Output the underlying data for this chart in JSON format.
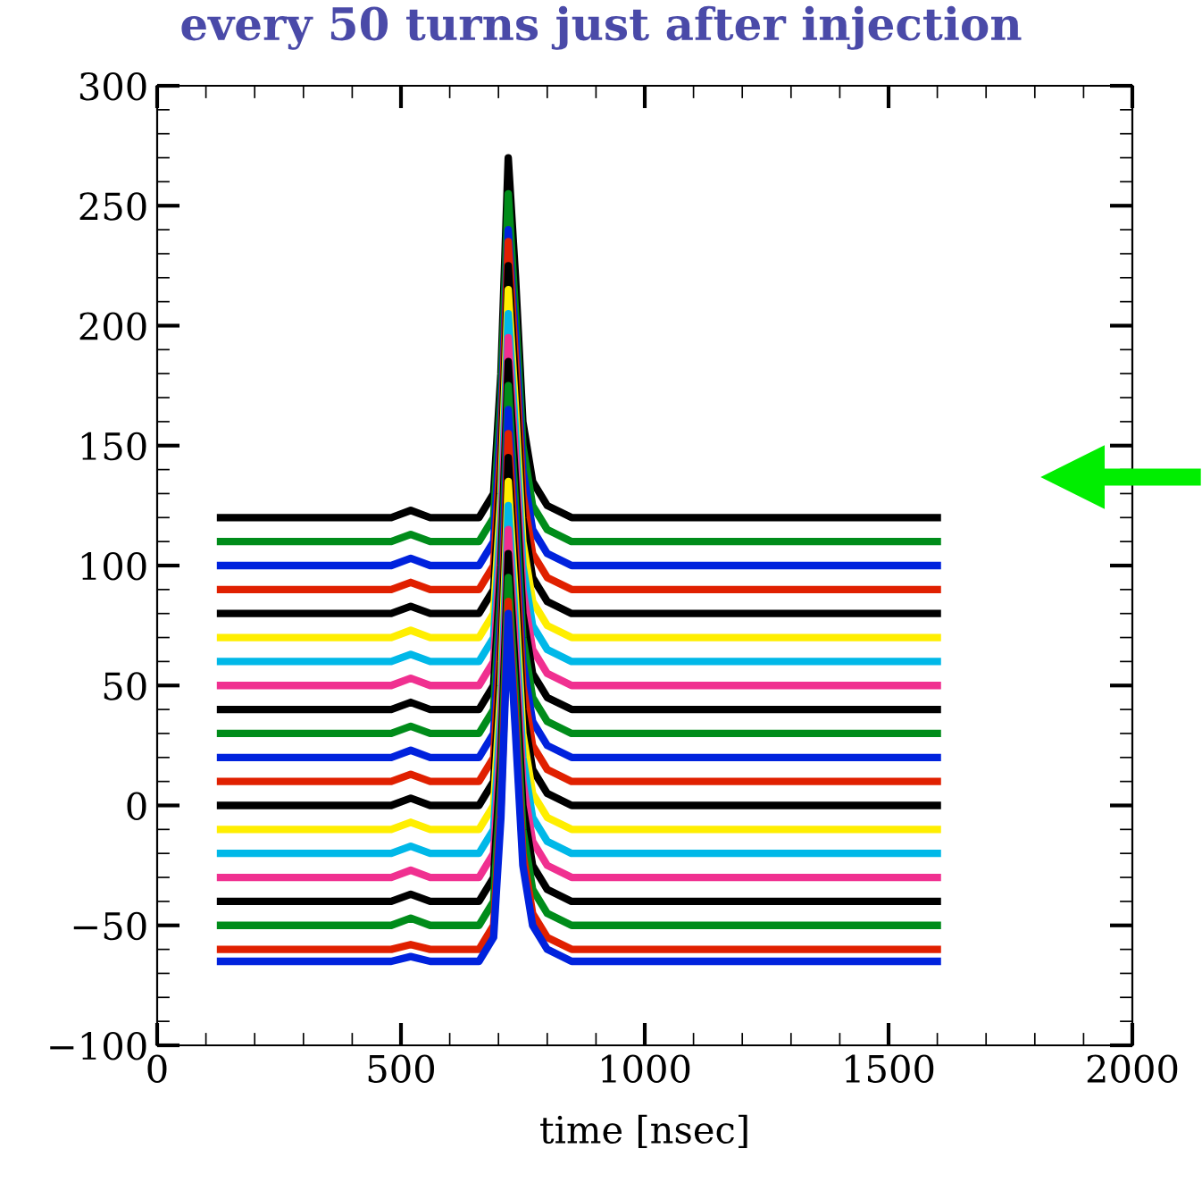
{
  "chart_data": {
    "type": "line",
    "title": "every 50 turns just after injection",
    "xlabel": "time [nsec]",
    "xlim": [
      0,
      2000
    ],
    "xticks": [
      0,
      500,
      1000,
      1500,
      2000
    ],
    "ylim": [
      -100,
      300
    ],
    "yticks": [
      -100,
      -50,
      0,
      50,
      100,
      150,
      200,
      250,
      300
    ],
    "x": [
      130,
      480,
      520,
      560,
      660,
      690,
      705,
      720,
      735,
      750,
      770,
      800,
      850,
      1600
    ],
    "series": [
      {
        "color": "#000000",
        "values": [
          120,
          120,
          123,
          120,
          120,
          130,
          180,
          270,
          220,
          160,
          135,
          125,
          120,
          120
        ]
      },
      {
        "color": "#008c1a",
        "values": [
          110,
          110,
          113,
          110,
          110,
          120,
          170,
          255,
          205,
          150,
          125,
          115,
          110,
          110
        ]
      },
      {
        "color": "#0022dd",
        "values": [
          100,
          100,
          103,
          100,
          100,
          110,
          160,
          240,
          195,
          140,
          115,
          105,
          100,
          100
        ]
      },
      {
        "color": "#e02000",
        "values": [
          90,
          90,
          93,
          90,
          90,
          100,
          150,
          235,
          185,
          130,
          105,
          95,
          90,
          90
        ]
      },
      {
        "color": "#000000",
        "values": [
          80,
          80,
          83,
          80,
          80,
          90,
          140,
          225,
          175,
          120,
          95,
          85,
          80,
          80
        ]
      },
      {
        "color": "#ffee00",
        "values": [
          70,
          70,
          73,
          70,
          70,
          80,
          130,
          215,
          165,
          110,
          85,
          75,
          70,
          70
        ]
      },
      {
        "color": "#00b8e8",
        "values": [
          60,
          60,
          63,
          60,
          60,
          70,
          120,
          205,
          155,
          100,
          75,
          65,
          60,
          60
        ]
      },
      {
        "color": "#f03090",
        "values": [
          50,
          50,
          53,
          50,
          50,
          60,
          110,
          195,
          145,
          90,
          65,
          55,
          50,
          50
        ]
      },
      {
        "color": "#000000",
        "values": [
          40,
          40,
          43,
          40,
          40,
          50,
          100,
          185,
          135,
          80,
          55,
          45,
          40,
          40
        ]
      },
      {
        "color": "#008c1a",
        "values": [
          30,
          30,
          33,
          30,
          30,
          40,
          90,
          175,
          125,
          70,
          45,
          35,
          30,
          30
        ]
      },
      {
        "color": "#0022dd",
        "values": [
          20,
          20,
          23,
          20,
          20,
          30,
          80,
          165,
          115,
          60,
          35,
          25,
          20,
          20
        ]
      },
      {
        "color": "#e02000",
        "values": [
          10,
          10,
          13,
          10,
          10,
          20,
          70,
          155,
          105,
          50,
          25,
          15,
          10,
          10
        ]
      },
      {
        "color": "#000000",
        "values": [
          0,
          0,
          3,
          0,
          0,
          10,
          60,
          145,
          95,
          40,
          15,
          5,
          0,
          0
        ]
      },
      {
        "color": "#ffee00",
        "values": [
          -10,
          -10,
          -7,
          -10,
          -10,
          0,
          50,
          135,
          85,
          30,
          5,
          -5,
          -10,
          -10
        ]
      },
      {
        "color": "#00b8e8",
        "values": [
          -20,
          -20,
          -17,
          -20,
          -20,
          -10,
          40,
          125,
          75,
          20,
          -5,
          -15,
          -20,
          -20
        ]
      },
      {
        "color": "#f03090",
        "values": [
          -30,
          -30,
          -27,
          -30,
          -30,
          -20,
          30,
          115,
          65,
          10,
          -15,
          -25,
          -30,
          -30
        ]
      },
      {
        "color": "#000000",
        "values": [
          -40,
          -40,
          -37,
          -40,
          -40,
          -30,
          20,
          105,
          55,
          0,
          -25,
          -35,
          -40,
          -40
        ]
      },
      {
        "color": "#008c1a",
        "values": [
          -50,
          -50,
          -47,
          -50,
          -50,
          -40,
          10,
          95,
          45,
          -10,
          -35,
          -45,
          -50,
          -50
        ]
      },
      {
        "color": "#e02000",
        "values": [
          -60,
          -60,
          -58,
          -60,
          -60,
          -50,
          0,
          85,
          35,
          -20,
          -45,
          -55,
          -60,
          -60
        ]
      },
      {
        "color": "#0022dd",
        "values": [
          -65,
          -65,
          -63,
          -65,
          -65,
          -55,
          -5,
          80,
          30,
          -25,
          -50,
          -60,
          -65,
          -65
        ]
      }
    ]
  }
}
